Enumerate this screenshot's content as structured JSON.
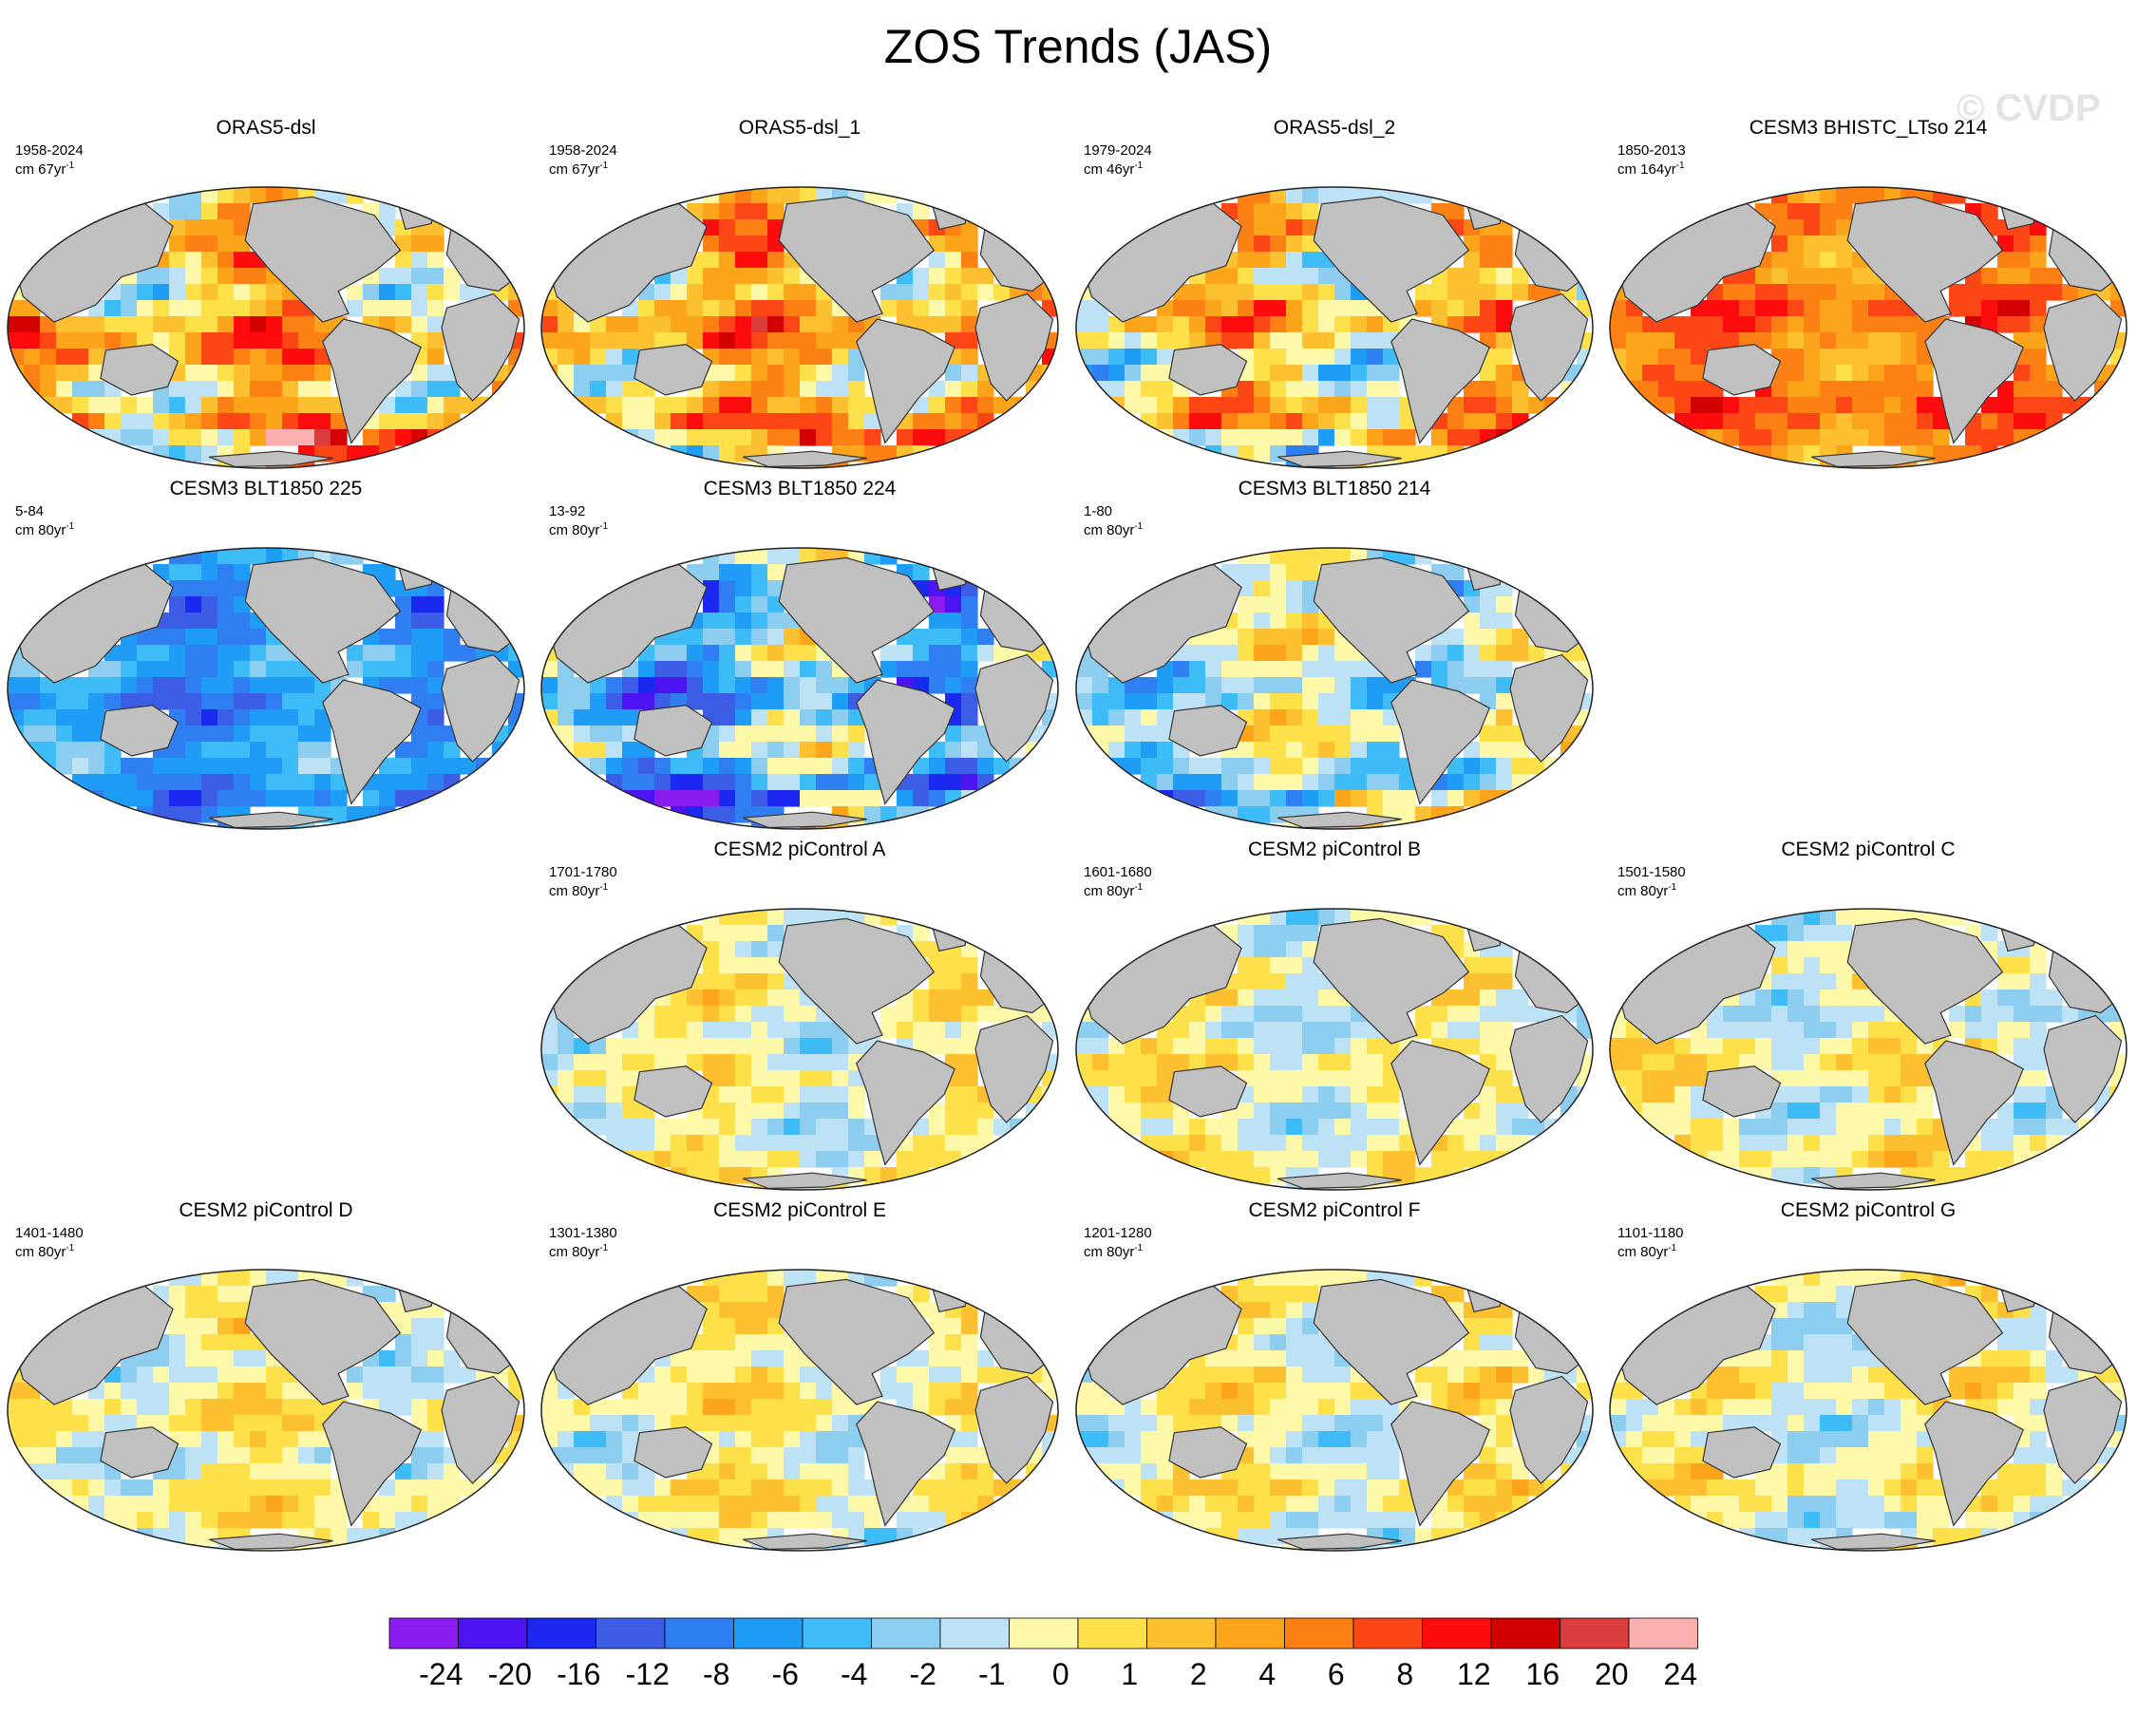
{
  "title": "ZOS Trends (JAS)",
  "watermark": "© CVDP",
  "colors": {
    "land": "#c0c0c0",
    "coast": "#333333",
    "ocean_neutral": "#fdf8b0"
  },
  "chart_data": {
    "type": "heatmap",
    "title": "ZOS Trends (JAS)",
    "colorbar": {
      "labels": [
        "-24",
        "-20",
        "-16",
        "-12",
        "-8",
        "-6",
        "-4",
        "-2",
        "-1",
        "0",
        "1",
        "2",
        "4",
        "6",
        "8",
        "12",
        "16",
        "20",
        "24"
      ],
      "colors": [
        "#8a1cf0",
        "#4b14f0",
        "#1a28f0",
        "#3c5ee6",
        "#2f7ff2",
        "#1f9cf6",
        "#3dbcf8",
        "#8ccdf0",
        "#bde2f6",
        "#fef9a8",
        "#fde04a",
        "#fdc030",
        "#fda51a",
        "#fc8014",
        "#fc4616",
        "#fc0c0c",
        "#d20000",
        "#da3c3c",
        "#fcb0b0"
      ]
    },
    "panels": [
      {
        "title": "ORAS5-dsl",
        "period": "1958-2024",
        "units_prefix": "cm 67yr",
        "units_exp": "-1",
        "row": 0,
        "col": 0,
        "mean_bin": 11,
        "spread": 4
      },
      {
        "title": "ORAS5-dsl_1",
        "period": "1958-2024",
        "units_prefix": "cm 67yr",
        "units_exp": "-1",
        "row": 0,
        "col": 1,
        "mean_bin": 11,
        "spread": 4
      },
      {
        "title": "ORAS5-dsl_2",
        "period": "1979-2024",
        "units_prefix": "cm 46yr",
        "units_exp": "-1",
        "row": 0,
        "col": 2,
        "mean_bin": 10,
        "spread": 4
      },
      {
        "title": "CESM3 BHISTC_LTso 214",
        "period": "1850-2013",
        "units_prefix": "cm 164yr",
        "units_exp": "-1",
        "row": 0,
        "col": 3,
        "mean_bin": 13,
        "spread": 2
      },
      {
        "title": "CESM3 BLT1850 225",
        "period": "5-84",
        "units_prefix": "cm 80yr",
        "units_exp": "-1",
        "row": 1,
        "col": 0,
        "mean_bin": 5,
        "spread": 2
      },
      {
        "title": "CESM3 BLT1850 224",
        "period": "13-92",
        "units_prefix": "cm 80yr",
        "units_exp": "-1",
        "row": 1,
        "col": 1,
        "mean_bin": 6,
        "spread": 4
      },
      {
        "title": "CESM3 BLT1850 214",
        "period": "1-80",
        "units_prefix": "cm 80yr",
        "units_exp": "-1",
        "row": 1,
        "col": 2,
        "mean_bin": 8,
        "spread": 3
      },
      {
        "title": "CESM2 piControl A",
        "period": "1701-1780",
        "units_prefix": "cm 80yr",
        "units_exp": "-1",
        "row": 2,
        "col": 1,
        "mean_bin": 9,
        "spread": 2
      },
      {
        "title": "CESM2 piControl B",
        "period": "1601-1680",
        "units_prefix": "cm 80yr",
        "units_exp": "-1",
        "row": 2,
        "col": 2,
        "mean_bin": 9,
        "spread": 2
      },
      {
        "title": "CESM2 piControl C",
        "period": "1501-1580",
        "units_prefix": "cm 80yr",
        "units_exp": "-1",
        "row": 2,
        "col": 3,
        "mean_bin": 9,
        "spread": 2
      },
      {
        "title": "CESM2 piControl D",
        "period": "1401-1480",
        "units_prefix": "cm 80yr",
        "units_exp": "-1",
        "row": 3,
        "col": 0,
        "mean_bin": 9,
        "spread": 2
      },
      {
        "title": "CESM2 piControl E",
        "period": "1301-1380",
        "units_prefix": "cm 80yr",
        "units_exp": "-1",
        "row": 3,
        "col": 1,
        "mean_bin": 9,
        "spread": 2
      },
      {
        "title": "CESM2 piControl F",
        "period": "1201-1280",
        "units_prefix": "cm 80yr",
        "units_exp": "-1",
        "row": 3,
        "col": 2,
        "mean_bin": 9,
        "spread": 2
      },
      {
        "title": "CESM2 piControl G",
        "period": "1101-1180",
        "units_prefix": "cm 80yr",
        "units_exp": "-1",
        "row": 3,
        "col": 3,
        "mean_bin": 9,
        "spread": 2
      }
    ]
  }
}
